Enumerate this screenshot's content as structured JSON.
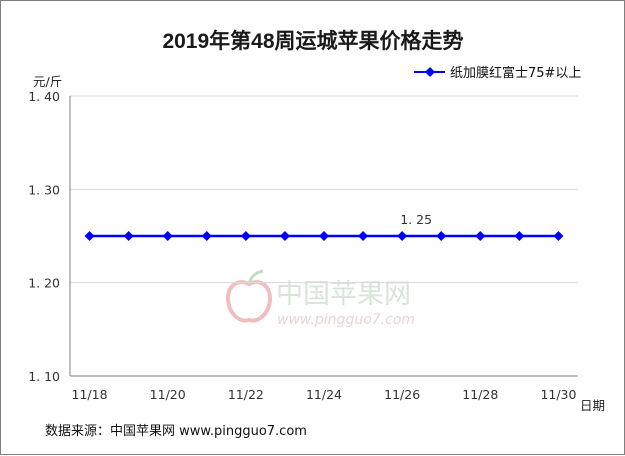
{
  "chart_data": {
    "type": "line",
    "title": "2019年第48周运城苹果价格走势",
    "ylabel": "元/斤",
    "xlabel": "日期",
    "ylim": [
      1.1,
      1.4
    ],
    "yticks": [
      "1.10",
      "1.20",
      "1.30",
      "1.40"
    ],
    "x_tick_labels": [
      "11/18",
      "11/20",
      "11/22",
      "11/24",
      "11/26",
      "11/28",
      "11/30"
    ],
    "x": [
      "11/18",
      "11/19",
      "11/20",
      "11/21",
      "11/22",
      "11/23",
      "11/24",
      "11/25",
      "11/26",
      "11/27",
      "11/28",
      "11/29",
      "11/30"
    ],
    "series": [
      {
        "name": "纸加膜红富士75#以上",
        "values": [
          1.25,
          1.25,
          1.25,
          1.25,
          1.25,
          1.25,
          1.25,
          1.25,
          1.25,
          1.25,
          1.25,
          1.25,
          1.25
        ],
        "color": "#0000ff"
      }
    ],
    "data_label": {
      "index": 8,
      "text": "1.25"
    },
    "grid": true,
    "legend": "top-right"
  },
  "source": "数据来源：中国苹果网 www.pingguo7.com",
  "watermark": {
    "text": "中国苹果网",
    "url": "www.pingguo7.com"
  }
}
